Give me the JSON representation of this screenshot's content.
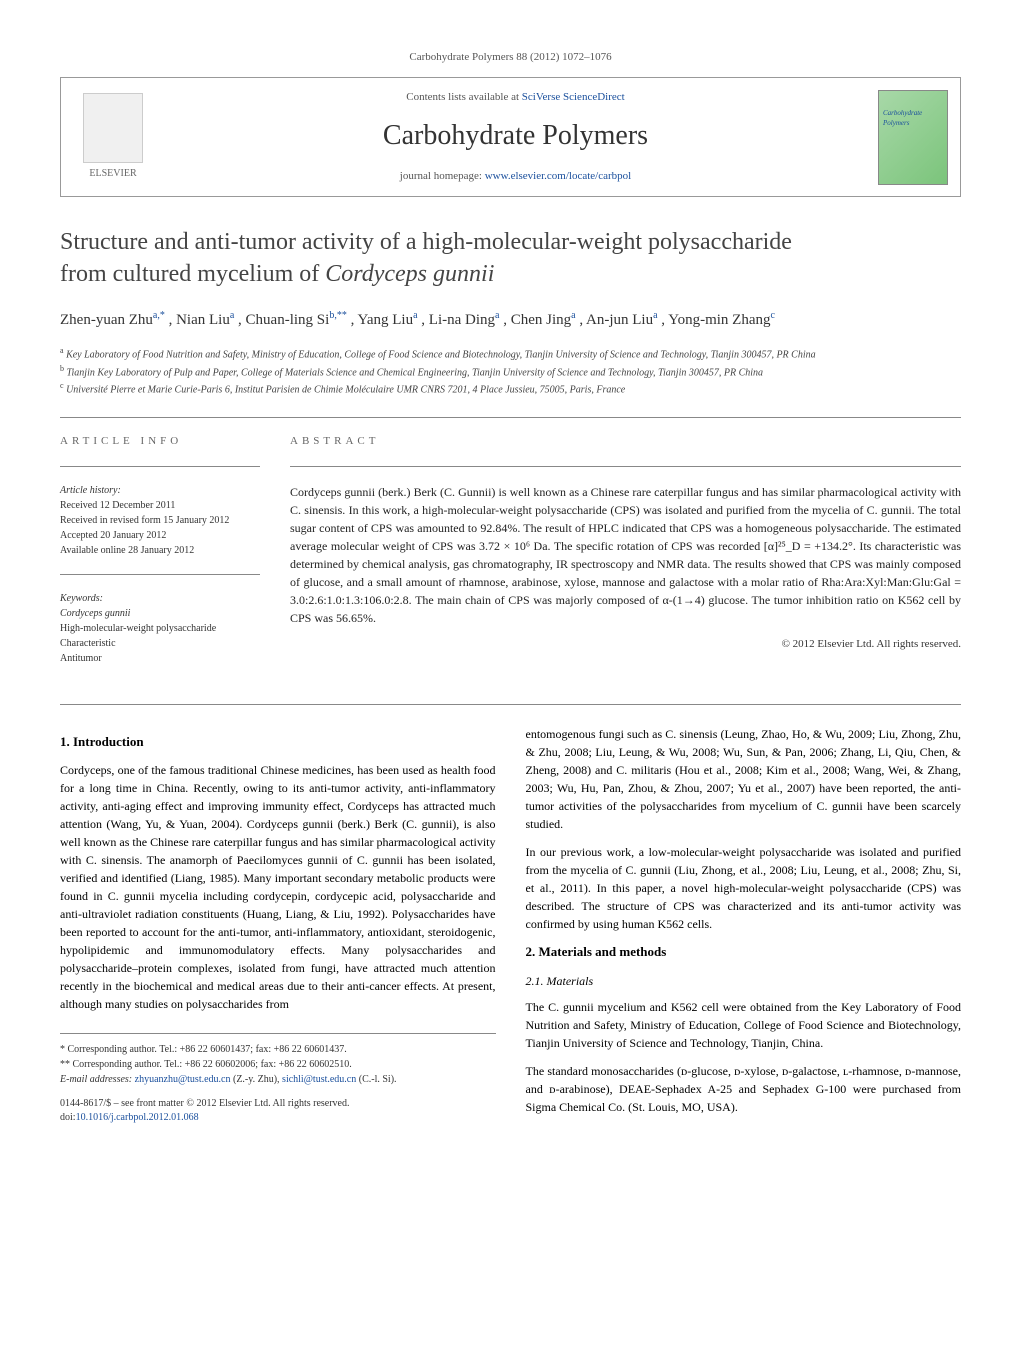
{
  "header": {
    "citation": "Carbohydrate Polymers 88 (2012) 1072–1076",
    "contents_line_prefix": "Contents lists available at ",
    "contents_line_link": "SciVerse ScienceDirect",
    "journal_name": "Carbohydrate Polymers",
    "homepage_prefix": "journal homepage: ",
    "homepage_link": "www.elsevier.com/locate/carbpol",
    "publisher": "ELSEVIER",
    "cover_label": "Carbohydrate Polymers"
  },
  "title": {
    "line1": "Structure and anti-tumor activity of a high-molecular-weight polysaccharide",
    "line2_pre": "from cultured mycelium of ",
    "line2_italic": "Cordyceps gunnii"
  },
  "authors": "Zhen-yuan Zhu",
  "authors_sup1": "a,*",
  "authors2": ", Nian Liu",
  "authors_sup2": "a",
  "authors3": ", Chuan-ling Si",
  "authors_sup3": "b,**",
  "authors4": ", Yang Liu",
  "authors_sup4": "a",
  "authors5": ", Li-na Ding",
  "authors_sup5": "a",
  "authors6": ", Chen Jing",
  "authors_sup6": "a",
  "authors7": ", An-jun Liu",
  "authors_sup7": "a",
  "authors8": ", Yong-min Zhang",
  "authors_sup8": "c",
  "affiliations": {
    "a": "Key Laboratory of Food Nutrition and Safety, Ministry of Education, College of Food Science and Biotechnology, Tianjin University of Science and Technology, Tianjin 300457, PR China",
    "b": "Tianjin Key Laboratory of Pulp and Paper, College of Materials Science and Chemical Engineering, Tianjin University of Science and Technology, Tianjin 300457, PR China",
    "c": "Université Pierre et Marie Curie-Paris 6, Institut Parisien de Chimie Moléculaire UMR CNRS 7201, 4 Place Jussieu, 75005, Paris, France"
  },
  "article_info": {
    "heading": "ARTICLE INFO",
    "history_label": "Article history:",
    "received": "Received 12 December 2011",
    "revised": "Received in revised form 15 January 2012",
    "accepted": "Accepted 20 January 2012",
    "online": "Available online 28 January 2012",
    "keywords_label": "Keywords:",
    "kw1": "Cordyceps gunnii",
    "kw2": "High-molecular-weight polysaccharide",
    "kw3": "Characteristic",
    "kw4": "Antitumor"
  },
  "abstract": {
    "heading": "ABSTRACT",
    "text": "Cordyceps gunnii (berk.) Berk (C. Gunnii) is well known as a Chinese rare caterpillar fungus and has similar pharmacological activity with C. sinensis. In this work, a high-molecular-weight polysaccharide (CPS) was isolated and purified from the mycelia of C. gunnii. The total sugar content of CPS was amounted to 92.84%. The result of HPLC indicated that CPS was a homogeneous polysaccharide. The estimated average molecular weight of CPS was 3.72 × 10⁶ Da. The specific rotation of CPS was recorded [α]²⁵_D = +134.2°. Its characteristic was determined by chemical analysis, gas chromatography, IR spectroscopy and NMR data. The results showed that CPS was mainly composed of glucose, and a small amount of rhamnose, arabinose, xylose, mannose and galactose with a molar ratio of Rha:Ara:Xyl:Man:Glu:Gal = 3.0:2.6:1.0:1.3:106.0:2.8. The main chain of CPS was majorly composed of α-(1→4) glucose. The tumor inhibition ratio on K562 cell by CPS was 56.65%.",
    "copyright": "© 2012 Elsevier Ltd. All rights reserved."
  },
  "body": {
    "intro_heading": "1. Introduction",
    "intro_p1": "Cordyceps, one of the famous traditional Chinese medicines, has been used as health food for a long time in China. Recently, owing to its anti-tumor activity, anti-inflammatory activity, anti-aging effect and improving immunity effect, Cordyceps has attracted much attention (Wang, Yu, & Yuan, 2004). Cordyceps gunnii (berk.) Berk (C. gunnii), is also well known as the Chinese rare caterpillar fungus and has similar pharmacological activity with C. sinensis. The anamorph of Paecilomyces gunnii of C. gunnii has been isolated, verified and identified (Liang, 1985). Many important secondary metabolic products were found in C. gunnii mycelia including cordycepin, cordycepic acid, polysaccharide and anti-ultraviolet radiation constituents (Huang, Liang, & Liu, 1992). Polysaccharides have been reported to account for the anti-tumor, anti-inflammatory, antioxidant, steroidogenic, hypolipidemic and immunomodulatory effects. Many polysaccharides and polysaccharide–protein complexes, isolated from fungi, have attracted much attention recently in the biochemical and medical areas due to their anti-cancer effects. At present, although many studies on polysaccharides from",
    "col2_p1": "entomogenous fungi such as C. sinensis (Leung, Zhao, Ho, & Wu, 2009; Liu, Zhong, Zhu, & Zhu, 2008; Liu, Leung, & Wu, 2008; Wu, Sun, & Pan, 2006; Zhang, Li, Qiu, Chen, & Zheng, 2008) and C. militaris (Hou et al., 2008; Kim et al., 2008; Wang, Wei, & Zhang, 2003; Wu, Hu, Pan, Zhou, & Zhou, 2007; Yu et al., 2007) have been reported, the anti-tumor activities of the polysaccharides from mycelium of C. gunnii have been scarcely studied.",
    "col2_p2": "In our previous work, a low-molecular-weight polysaccharide was isolated and purified from the mycelia of C. gunnii (Liu, Zhong, et al., 2008; Liu, Leung, et al., 2008; Zhu, Si, et al., 2011). In this paper, a novel high-molecular-weight polysaccharide (CPS) was described. The structure of CPS was characterized and its anti-tumor activity was confirmed by using human K562 cells.",
    "methods_heading": "2. Materials and methods",
    "materials_heading": "2.1. Materials",
    "materials_p1": "The C. gunnii mycelium and K562 cell were obtained from the Key Laboratory of Food Nutrition and Safety, Ministry of Education, College of Food Science and Biotechnology, Tianjin University of Science and Technology, Tianjin, China.",
    "materials_p2": "The standard monosaccharides (ᴅ-glucose, ᴅ-xylose, ᴅ-galactose, ʟ-rhamnose, ᴅ-mannose, and ᴅ-arabinose), DEAE-Sephadex A-25 and Sephadex G-100 were purchased from Sigma Chemical Co. (St. Louis, MO, USA)."
  },
  "footnotes": {
    "corr1": "* Corresponding author. Tel.: +86 22 60601437; fax: +86 22 60601437.",
    "corr2": "** Corresponding author. Tel.: +86 22 60602006; fax: +86 22 60602510.",
    "email_label": "E-mail addresses: ",
    "email1": "zhyuanzhu@tust.edu.cn",
    "email1_who": " (Z.-y. Zhu), ",
    "email2": "sichli@tust.edu.cn",
    "email2_who": " (C.-l. Si)."
  },
  "footer": {
    "line1": "0144-8617/$ – see front matter © 2012 Elsevier Ltd. All rights reserved.",
    "doi_label": "doi:",
    "doi": "10.1016/j.carbpol.2012.01.068"
  },
  "colors": {
    "link": "#1a4f9c",
    "text": "#000000",
    "muted": "#555555",
    "border": "#888888",
    "cover_grad_start": "#a8d8a8",
    "cover_grad_end": "#7bc47b"
  }
}
